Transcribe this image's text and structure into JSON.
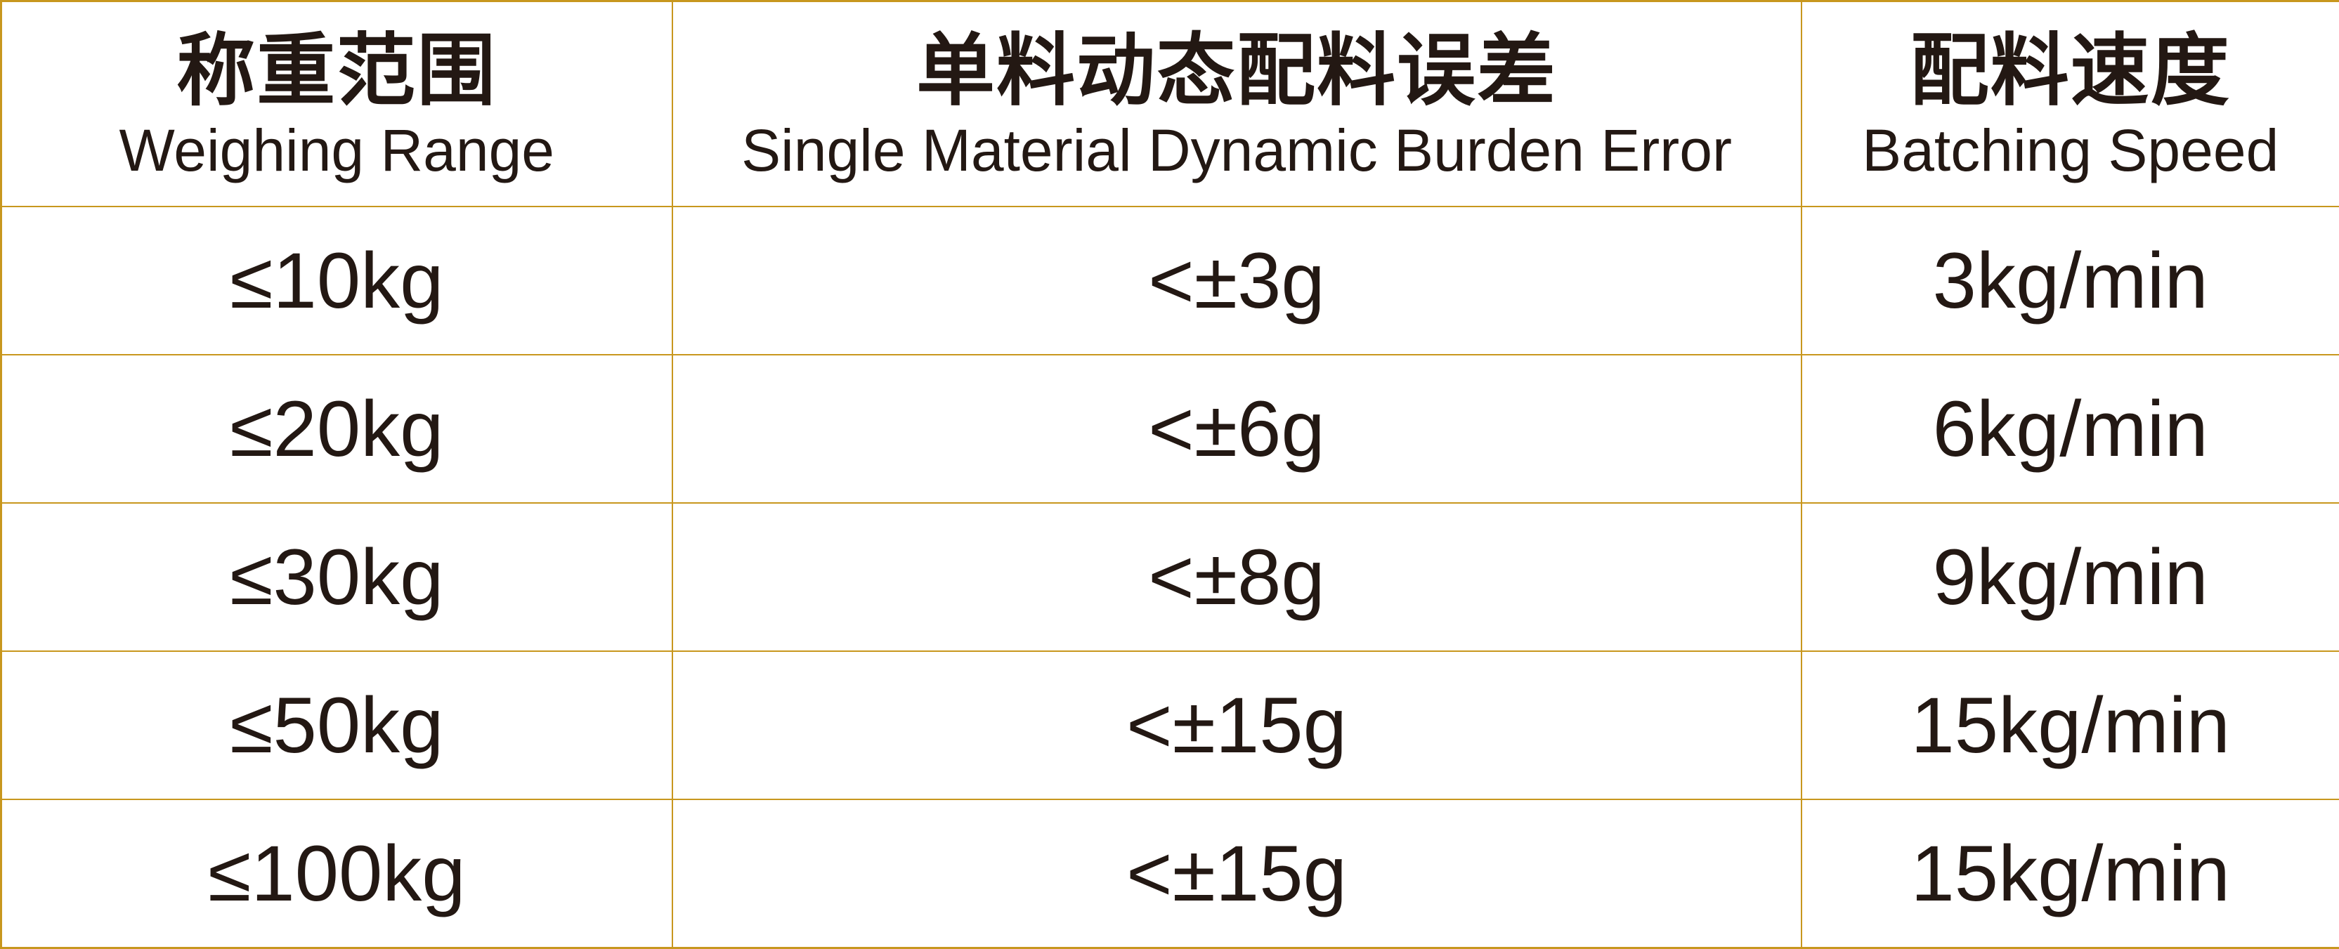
{
  "colors": {
    "border": "#C8971E",
    "text": "#231813",
    "background": "#FFFFFF"
  },
  "chart_data": {
    "type": "table",
    "title": "",
    "columns": [
      {
        "zh": "称重范围",
        "en": "Weighing Range"
      },
      {
        "zh": "单料动态配料误差",
        "en": "Single Material Dynamic Burden Error"
      },
      {
        "zh": "配料速度",
        "en": "Batching Speed"
      }
    ],
    "rows": [
      [
        "≤10kg",
        "<±3g",
        "3kg/min"
      ],
      [
        "≤20kg",
        "<±6g",
        "6kg/min"
      ],
      [
        "≤30kg",
        "<±8g",
        "9kg/min"
      ],
      [
        "≤50kg",
        "<±15g",
        "15kg/min"
      ],
      [
        "≤100kg",
        "<±15g",
        "15kg/min"
      ]
    ]
  }
}
